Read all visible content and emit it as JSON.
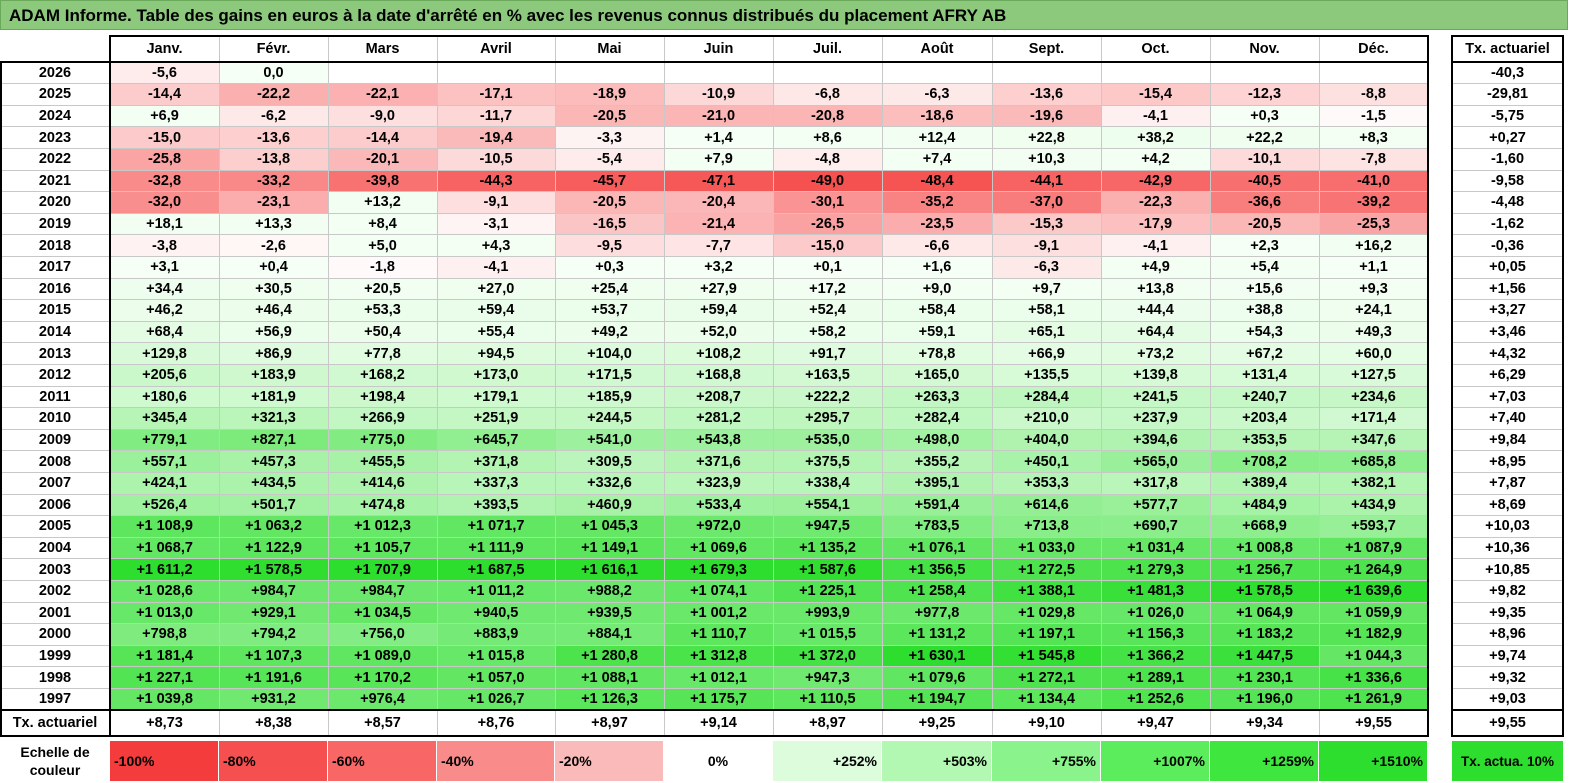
{
  "title": "ADAM Informe. Table des gains en euros à la date d'arrêté en % avec les revenus connus distribués du placement AFRY AB",
  "months": [
    "Janv.",
    "Févr.",
    "Mars",
    "Avril",
    "Mai",
    "Juin",
    "Juil.",
    "Août",
    "Sept.",
    "Oct.",
    "Nov.",
    "Déc."
  ],
  "rate_header": "Tx. actuariel",
  "rows": [
    {
      "year": "2026",
      "values": [
        "-5,6",
        "0,0",
        "",
        "",
        "",
        "",
        "",
        "",
        "",
        "",
        "",
        ""
      ],
      "rate": "-40,3"
    },
    {
      "year": "2025",
      "values": [
        "-14,4",
        "-22,2",
        "-22,1",
        "-17,1",
        "-18,9",
        "-10,9",
        "-6,8",
        "-6,3",
        "-13,6",
        "-15,4",
        "-12,3",
        "-8,8"
      ],
      "rate": "-29,81"
    },
    {
      "year": "2024",
      "values": [
        "+6,9",
        "-6,2",
        "-9,0",
        "-11,7",
        "-20,5",
        "-21,0",
        "-20,8",
        "-18,6",
        "-19,6",
        "-4,1",
        "+0,3",
        "-1,5"
      ],
      "rate": "-5,75"
    },
    {
      "year": "2023",
      "values": [
        "-15,0",
        "-13,6",
        "-14,4",
        "-19,4",
        "-3,3",
        "+1,4",
        "+8,6",
        "+12,4",
        "+22,8",
        "+38,2",
        "+22,2",
        "+8,3"
      ],
      "rate": "+0,27"
    },
    {
      "year": "2022",
      "values": [
        "-25,8",
        "-13,8",
        "-20,1",
        "-10,5",
        "-5,4",
        "+7,9",
        "-4,8",
        "+7,4",
        "+10,3",
        "+4,2",
        "-10,1",
        "-7,8"
      ],
      "rate": "-1,60"
    },
    {
      "year": "2021",
      "values": [
        "-32,8",
        "-33,2",
        "-39,8",
        "-44,3",
        "-45,7",
        "-47,1",
        "-49,0",
        "-48,4",
        "-44,1",
        "-42,9",
        "-40,5",
        "-41,0"
      ],
      "rate": "-9,58"
    },
    {
      "year": "2020",
      "values": [
        "-32,0",
        "-23,1",
        "+13,2",
        "-9,1",
        "-20,5",
        "-20,4",
        "-30,1",
        "-35,2",
        "-37,0",
        "-22,3",
        "-36,6",
        "-39,2"
      ],
      "rate": "-4,48"
    },
    {
      "year": "2019",
      "values": [
        "+18,1",
        "+13,3",
        "+8,4",
        "-3,1",
        "-16,5",
        "-21,4",
        "-26,5",
        "-23,5",
        "-15,3",
        "-17,9",
        "-20,5",
        "-25,3"
      ],
      "rate": "-1,62"
    },
    {
      "year": "2018",
      "values": [
        "-3,8",
        "-2,6",
        "+5,0",
        "+4,3",
        "-9,5",
        "-7,7",
        "-15,0",
        "-6,6",
        "-9,1",
        "-4,1",
        "+2,3",
        "+16,2"
      ],
      "rate": "-0,36"
    },
    {
      "year": "2017",
      "values": [
        "+3,1",
        "+0,4",
        "-1,8",
        "-4,1",
        "+0,3",
        "+3,2",
        "+0,1",
        "+1,6",
        "-6,3",
        "+4,9",
        "+5,4",
        "+1,1"
      ],
      "rate": "+0,05"
    },
    {
      "year": "2016",
      "values": [
        "+34,4",
        "+30,5",
        "+20,5",
        "+27,0",
        "+25,4",
        "+27,9",
        "+17,2",
        "+9,0",
        "+9,7",
        "+13,8",
        "+15,6",
        "+9,3"
      ],
      "rate": "+1,56"
    },
    {
      "year": "2015",
      "values": [
        "+46,2",
        "+46,4",
        "+53,3",
        "+59,4",
        "+53,7",
        "+59,4",
        "+52,4",
        "+58,4",
        "+58,1",
        "+44,4",
        "+38,8",
        "+24,1"
      ],
      "rate": "+3,27"
    },
    {
      "year": "2014",
      "values": [
        "+68,4",
        "+56,9",
        "+50,4",
        "+55,4",
        "+49,2",
        "+52,0",
        "+58,2",
        "+59,1",
        "+65,1",
        "+64,4",
        "+54,3",
        "+49,3"
      ],
      "rate": "+3,46"
    },
    {
      "year": "2013",
      "values": [
        "+129,8",
        "+86,9",
        "+77,8",
        "+94,5",
        "+104,0",
        "+108,2",
        "+91,7",
        "+78,8",
        "+66,9",
        "+73,2",
        "+67,2",
        "+60,0"
      ],
      "rate": "+4,32"
    },
    {
      "year": "2012",
      "values": [
        "+205,6",
        "+183,9",
        "+168,2",
        "+173,0",
        "+171,5",
        "+168,8",
        "+163,5",
        "+165,0",
        "+135,5",
        "+139,8",
        "+131,4",
        "+127,5"
      ],
      "rate": "+6,29"
    },
    {
      "year": "2011",
      "values": [
        "+180,6",
        "+181,9",
        "+198,4",
        "+179,1",
        "+185,9",
        "+208,7",
        "+222,2",
        "+263,3",
        "+284,4",
        "+241,5",
        "+240,7",
        "+234,6"
      ],
      "rate": "+7,03"
    },
    {
      "year": "2010",
      "values": [
        "+345,4",
        "+321,3",
        "+266,9",
        "+251,9",
        "+244,5",
        "+281,2",
        "+295,7",
        "+282,4",
        "+210,0",
        "+237,9",
        "+203,4",
        "+171,4"
      ],
      "rate": "+7,40"
    },
    {
      "year": "2009",
      "values": [
        "+779,1",
        "+827,1",
        "+775,0",
        "+645,7",
        "+541,0",
        "+543,8",
        "+535,0",
        "+498,0",
        "+404,0",
        "+394,6",
        "+353,5",
        "+347,6"
      ],
      "rate": "+9,84"
    },
    {
      "year": "2008",
      "values": [
        "+557,1",
        "+457,3",
        "+455,5",
        "+371,8",
        "+309,5",
        "+371,6",
        "+375,5",
        "+355,2",
        "+450,1",
        "+565,0",
        "+708,2",
        "+685,8"
      ],
      "rate": "+8,95"
    },
    {
      "year": "2007",
      "values": [
        "+424,1",
        "+434,5",
        "+414,6",
        "+337,3",
        "+332,6",
        "+323,9",
        "+338,4",
        "+395,1",
        "+353,3",
        "+317,8",
        "+389,4",
        "+382,1"
      ],
      "rate": "+7,87"
    },
    {
      "year": "2006",
      "values": [
        "+526,4",
        "+501,7",
        "+474,8",
        "+393,5",
        "+460,9",
        "+533,4",
        "+554,1",
        "+591,4",
        "+614,6",
        "+577,7",
        "+484,9",
        "+434,9"
      ],
      "rate": "+8,69"
    },
    {
      "year": "2005",
      "values": [
        "+1 108,9",
        "+1 063,2",
        "+1 012,3",
        "+1 071,7",
        "+1 045,3",
        "+972,0",
        "+947,5",
        "+783,5",
        "+713,8",
        "+690,7",
        "+668,9",
        "+593,7"
      ],
      "rate": "+10,03"
    },
    {
      "year": "2004",
      "values": [
        "+1 068,7",
        "+1 122,9",
        "+1 105,7",
        "+1 111,9",
        "+1 149,1",
        "+1 069,6",
        "+1 135,2",
        "+1 076,1",
        "+1 033,0",
        "+1 031,4",
        "+1 008,8",
        "+1 087,9"
      ],
      "rate": "+10,36"
    },
    {
      "year": "2003",
      "values": [
        "+1 611,2",
        "+1 578,5",
        "+1 707,9",
        "+1 687,5",
        "+1 616,1",
        "+1 679,3",
        "+1 587,6",
        "+1 356,5",
        "+1 272,5",
        "+1 279,3",
        "+1 256,7",
        "+1 264,9"
      ],
      "rate": "+10,85"
    },
    {
      "year": "2002",
      "values": [
        "+1 028,6",
        "+984,7",
        "+984,7",
        "+1 011,2",
        "+988,2",
        "+1 074,1",
        "+1 225,1",
        "+1 258,4",
        "+1 388,1",
        "+1 481,3",
        "+1 578,5",
        "+1 639,6"
      ],
      "rate": "+9,82"
    },
    {
      "year": "2001",
      "values": [
        "+1 013,0",
        "+929,1",
        "+1 034,5",
        "+940,5",
        "+939,5",
        "+1 001,2",
        "+993,9",
        "+977,8",
        "+1 029,8",
        "+1 026,0",
        "+1 064,9",
        "+1 059,9"
      ],
      "rate": "+9,35"
    },
    {
      "year": "2000",
      "values": [
        "+798,8",
        "+794,2",
        "+756,0",
        "+883,9",
        "+884,1",
        "+1 110,7",
        "+1 015,5",
        "+1 131,2",
        "+1 197,1",
        "+1 156,3",
        "+1 183,2",
        "+1 182,9"
      ],
      "rate": "+8,96"
    },
    {
      "year": "1999",
      "values": [
        "+1 181,4",
        "+1 107,3",
        "+1 089,0",
        "+1 015,8",
        "+1 280,8",
        "+1 312,8",
        "+1 372,0",
        "+1 630,1",
        "+1 545,8",
        "+1 366,2",
        "+1 447,5",
        "+1 044,3"
      ],
      "rate": "+9,74"
    },
    {
      "year": "1998",
      "values": [
        "+1 227,1",
        "+1 191,6",
        "+1 170,2",
        "+1 057,0",
        "+1 088,1",
        "+1 012,1",
        "+947,3",
        "+1 079,6",
        "+1 272,1",
        "+1 289,1",
        "+1 230,1",
        "+1 336,6"
      ],
      "rate": "+9,32"
    },
    {
      "year": "1997",
      "values": [
        "+1 039,8",
        "+931,2",
        "+976,4",
        "+1 026,7",
        "+1 126,3",
        "+1 175,7",
        "+1 110,5",
        "+1 194,7",
        "+1 134,4",
        "+1 252,6",
        "+1 196,0",
        "+1 261,9"
      ],
      "rate": "+9,03"
    }
  ],
  "footer": {
    "label": "Tx. actuariel",
    "values": [
      "+8,73",
      "+8,38",
      "+8,57",
      "+8,76",
      "+8,97",
      "+9,14",
      "+8,97",
      "+9,25",
      "+9,10",
      "+9,47",
      "+9,34",
      "+9,55"
    ],
    "rate": "+9,55"
  },
  "legend": {
    "label": "Echelle de couleur",
    "items": [
      {
        "text": "-100%",
        "color": "#f53c3c"
      },
      {
        "text": "-80%",
        "color": "#f64f4f"
      },
      {
        "text": "-60%",
        "color": "#f86666"
      },
      {
        "text": "-40%",
        "color": "#f98b8b"
      },
      {
        "text": "-20%",
        "color": "#fbbaba"
      },
      {
        "text": "0%",
        "color": "#ffffff"
      },
      {
        "text": "+252%",
        "color": "#dcfcdc"
      },
      {
        "text": "+503%",
        "color": "#b2f7b2"
      },
      {
        "text": "+755%",
        "color": "#8bf38b"
      },
      {
        "text": "+1007%",
        "color": "#5ced5c"
      },
      {
        "text": "+1259%",
        "color": "#3ee63e"
      },
      {
        "text": "+1510%",
        "color": "#2ede2e"
      }
    ],
    "rate_text": "Tx. actua. 10%",
    "rate_color": "#2ede2e"
  }
}
